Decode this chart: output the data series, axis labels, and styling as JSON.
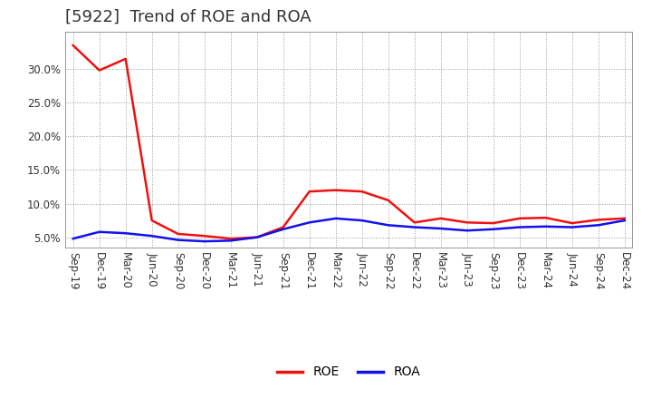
{
  "title": "[5922]  Trend of ROE and ROA",
  "x_labels": [
    "Sep-19",
    "Dec-19",
    "Mar-20",
    "Jun-20",
    "Sep-20",
    "Dec-20",
    "Mar-21",
    "Jun-21",
    "Sep-21",
    "Dec-21",
    "Mar-22",
    "Jun-22",
    "Sep-22",
    "Dec-22",
    "Mar-23",
    "Jun-23",
    "Sep-23",
    "Dec-23",
    "Mar-24",
    "Jun-24",
    "Sep-24",
    "Dec-24"
  ],
  "roe": [
    33.5,
    29.8,
    31.5,
    7.5,
    5.5,
    5.2,
    4.8,
    5.0,
    6.5,
    11.8,
    12.0,
    11.8,
    10.5,
    7.2,
    7.8,
    7.2,
    7.1,
    7.8,
    7.9,
    7.1,
    7.6,
    7.8
  ],
  "roa": [
    4.8,
    5.8,
    5.6,
    5.2,
    4.6,
    4.4,
    4.5,
    5.0,
    6.2,
    7.2,
    7.8,
    7.5,
    6.8,
    6.5,
    6.3,
    6.0,
    6.2,
    6.5,
    6.6,
    6.5,
    6.8,
    7.5
  ],
  "roe_color": "#ee1111",
  "roa_color": "#1111ee",
  "background_color": "#ffffff",
  "grid_color": "#999999",
  "ylim": [
    3.5,
    35.5
  ],
  "yticks": [
    5.0,
    10.0,
    15.0,
    20.0,
    25.0,
    30.0
  ],
  "title_fontsize": 13,
  "title_color": "#333333",
  "legend_fontsize": 10,
  "tick_fontsize": 8.5,
  "line_width": 1.8
}
